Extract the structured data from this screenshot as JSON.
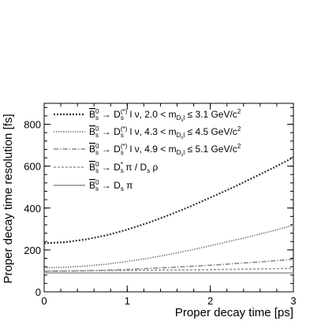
{
  "chart_data": {
    "type": "line",
    "title": "",
    "xlabel": "Proper decay time [ps]",
    "ylabel": "Proper decay time resolution [fs]",
    "xlim": [
      0,
      3
    ],
    "ylim": [
      0,
      900
    ],
    "x_ticks": [
      0,
      1,
      2,
      3
    ],
    "y_ticks": [
      0,
      200,
      400,
      600,
      800
    ],
    "legend_position": "top-left",
    "grid": false,
    "series": [
      {
        "legend_parts": [
          "B",
          "s",
          "0",
          " → D",
          "s",
          "(*)",
          " l ν, 2.0 < m",
          "D",
          "s",
          "l",
          " ≤ 3.1 GeV/c",
          "2"
        ],
        "color": "#333333",
        "dash": "2,2",
        "width": 2.2,
        "x": [
          0,
          0.25,
          0.5,
          0.75,
          1.0,
          1.25,
          1.5,
          1.75,
          2.0,
          2.25,
          2.5,
          2.75,
          3.0
        ],
        "y": [
          232,
          237,
          250,
          270,
          297,
          329,
          366,
          406,
          450,
          494,
          542,
          590,
          642
        ]
      },
      {
        "legend_parts": [
          "B",
          "s",
          "0",
          " → D",
          "s",
          "(*)",
          " l ν, 4.3 < m",
          "D",
          "s",
          "l",
          " ≤ 4.5 GeV/c",
          "2"
        ],
        "color": "#777777",
        "dash": "1.5,1.5",
        "width": 1.6,
        "x": [
          0,
          0.25,
          0.5,
          0.75,
          1.0,
          1.25,
          1.5,
          1.75,
          2.0,
          2.25,
          2.5,
          2.75,
          3.0
        ],
        "y": [
          115,
          117,
          123,
          132,
          145,
          160,
          178,
          198,
          220,
          243,
          266,
          291,
          318
        ]
      },
      {
        "legend_parts": [
          "B",
          "s",
          "0",
          " → D",
          "s",
          "(*)",
          " l ν, 4.9 < m",
          "D",
          "s",
          "l",
          " ≤ 5.1 GeV/c",
          "2"
        ],
        "color": "#888888",
        "dash": "6,2,1.5,2",
        "width": 1.6,
        "x": [
          0,
          0.5,
          1.0,
          1.5,
          2.0,
          2.5,
          3.0
        ],
        "y": [
          97,
          100,
          107,
          116,
          127,
          140,
          155
        ]
      },
      {
        "legend_parts": [
          "B",
          "s",
          "0",
          " → D",
          "s",
          "*",
          " π / D",
          "s",
          " ρ"
        ],
        "color": "#999999",
        "dash": "3,2",
        "width": 1.6,
        "x": [
          0,
          0.5,
          1.0,
          1.5,
          2.0,
          2.5,
          3.0
        ],
        "y": [
          100,
          101,
          102,
          104,
          106,
          109,
          112
        ]
      },
      {
        "legend_parts": [
          "B",
          "s",
          "0",
          " → D",
          "s",
          " π"
        ],
        "color": "#aaaaaa",
        "dash": "",
        "width": 2.0,
        "x": [
          0,
          3.0
        ],
        "y": [
          90,
          90
        ]
      }
    ]
  }
}
